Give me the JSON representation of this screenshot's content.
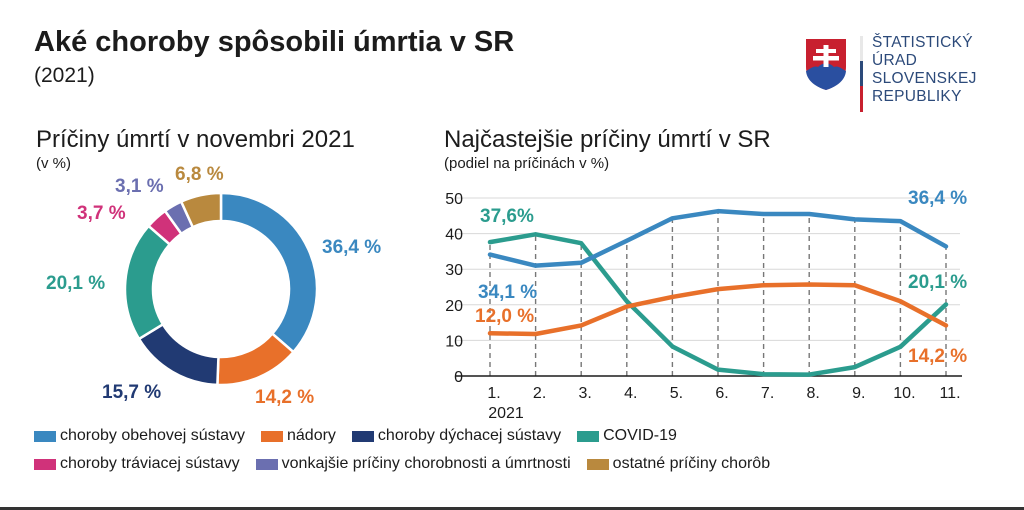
{
  "header": {
    "title": "Aké choroby spôsobili úmrtia v SR",
    "subtitle": "(2021)"
  },
  "logo": {
    "icon": "slovak-coat-of-arms-icon",
    "lines": [
      "ŠTATISTICKÝ",
      "ÚRAD",
      "SLOVENSKEJ",
      "REPUBLIKY"
    ]
  },
  "colors": {
    "obehova": "#3a88c0",
    "nadory": "#e8702a",
    "dychacia": "#213a73",
    "covid": "#2b9c8e",
    "traviaca": "#d0327a",
    "vonkajsie": "#6b6fb0",
    "ostatne": "#b9893e"
  },
  "legend": {
    "row1": [
      {
        "key": "obehova",
        "label": "choroby obehovej sústavy"
      },
      {
        "key": "nadory",
        "label": "nádory"
      },
      {
        "key": "dychacia",
        "label": "choroby dýchacej sústavy"
      },
      {
        "key": "covid",
        "label": "COVID-19"
      }
    ],
    "row2": [
      {
        "key": "traviaca",
        "label": "choroby tráviacej sústavy"
      },
      {
        "key": "vonkajsie",
        "label": "vonkajšie príčiny chorobnosti a úmrtnosti"
      },
      {
        "key": "ostatne",
        "label": "ostatné príčiny chorôb"
      }
    ]
  },
  "chart_data": [
    {
      "type": "pie",
      "variant": "donut",
      "title": "Príčiny úmrtí v novembri 2021",
      "subtitle": "(v %)",
      "slices": [
        {
          "key": "obehova",
          "name": "choroby obehovej sústavy",
          "value": 36.4,
          "label": "36,4 %"
        },
        {
          "key": "nadory",
          "name": "nádory",
          "value": 14.2,
          "label": "14,2 %"
        },
        {
          "key": "dychacia",
          "name": "choroby dýchacej sústavy",
          "value": 15.7,
          "label": "15,7 %"
        },
        {
          "key": "covid",
          "name": "COVID-19",
          "value": 20.1,
          "label": "20,1 %"
        },
        {
          "key": "traviaca",
          "name": "choroby tráviacej sústavy",
          "value": 3.7,
          "label": "3,7 %"
        },
        {
          "key": "vonkajsie",
          "name": "vonkajšie príčiny chorobnosti a úmrtnosti",
          "value": 3.1,
          "label": "3,1 %"
        },
        {
          "key": "ostatne",
          "name": "ostatné príčiny chorôb",
          "value": 6.8,
          "label": "6,8 %"
        }
      ],
      "start_angle": "top, clockwise"
    },
    {
      "type": "line",
      "title": "Najčastejšie príčiny úmrtí v SR",
      "subtitle": "(podiel na príčinách v %)",
      "x": [
        "1.",
        "2.",
        "3.",
        "4.",
        "5.",
        "6.",
        "7.",
        "8.",
        "9.",
        "10.",
        "11."
      ],
      "x_sublabel": "2021",
      "ylim": [
        0,
        50
      ],
      "yticks": [
        0,
        10,
        20,
        30,
        40,
        50
      ],
      "grid": true,
      "series": [
        {
          "key": "obehova",
          "name": "choroby obehovej sústavy",
          "values": [
            34.1,
            31.0,
            31.8,
            38.0,
            44.3,
            46.3,
            45.5,
            45.5,
            44.0,
            43.5,
            36.4
          ],
          "annotations": [
            {
              "index": 0,
              "text": "34,1 %"
            },
            {
              "index": 10,
              "text": "36,4 %"
            }
          ]
        },
        {
          "key": "covid",
          "name": "COVID-19",
          "values": [
            37.6,
            39.8,
            37.3,
            21.0,
            8.3,
            1.8,
            0.5,
            0.4,
            2.5,
            8.2,
            20.1
          ],
          "annotations": [
            {
              "index": 0,
              "text": "37,6%"
            },
            {
              "index": 10,
              "text": "20,1 %"
            }
          ]
        },
        {
          "key": "nadory",
          "name": "nádory",
          "values": [
            12.0,
            11.8,
            14.2,
            19.5,
            22.2,
            24.4,
            25.5,
            25.7,
            25.5,
            21.0,
            14.2
          ],
          "annotations": [
            {
              "index": 0,
              "text": "12,0 %"
            },
            {
              "index": 10,
              "text": "14,2 %"
            }
          ]
        }
      ]
    }
  ]
}
